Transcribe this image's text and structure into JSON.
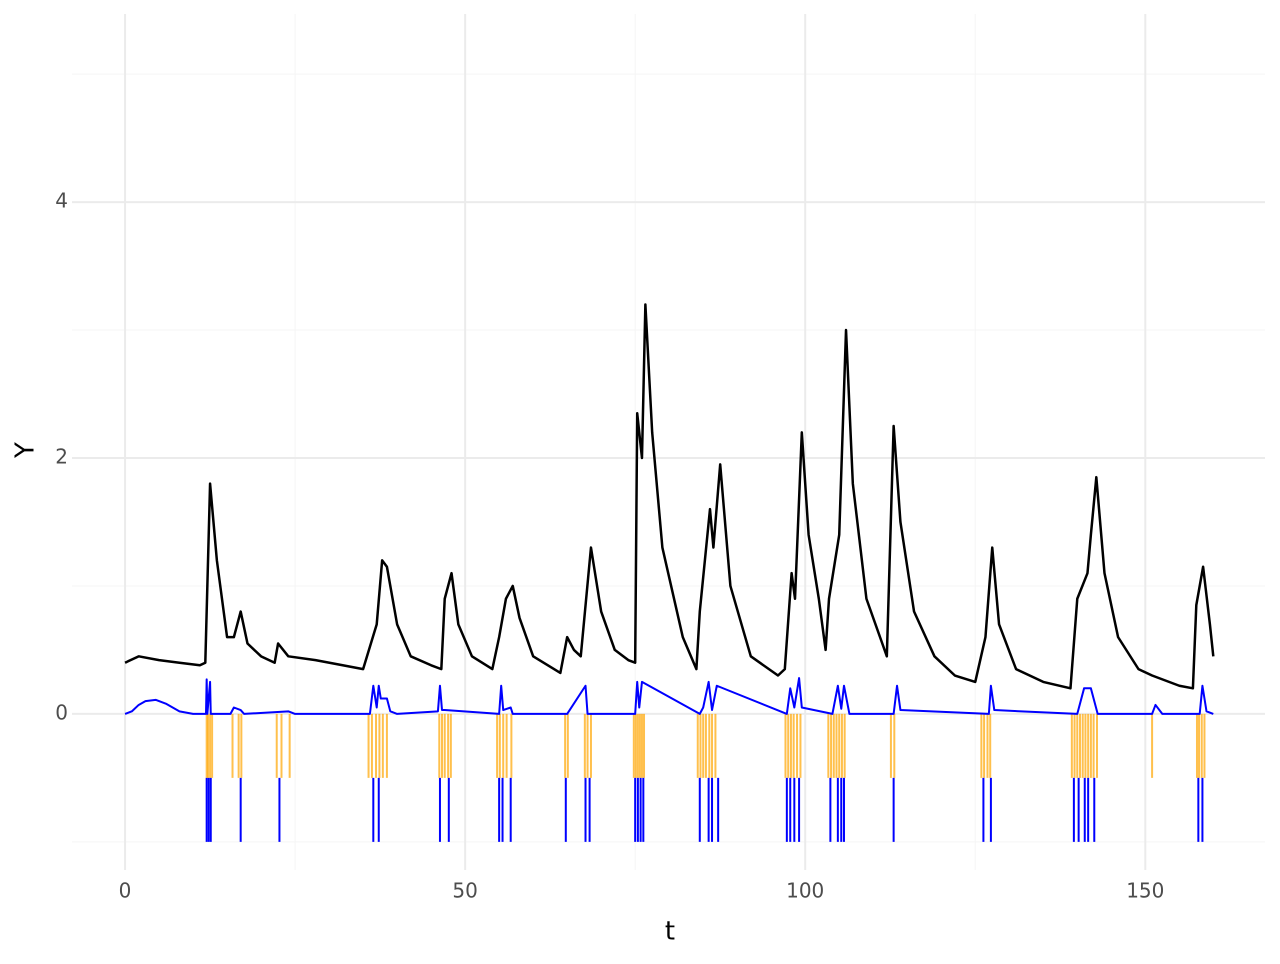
{
  "chart_data": {
    "type": "line",
    "xlabel": "t",
    "ylabel": "Y",
    "xlim": [
      -7.8,
      167.6
    ],
    "ylim": [
      -1.22,
      5.47
    ],
    "xticks": [
      0,
      50,
      100,
      150
    ],
    "yticks": [
      0,
      2,
      4
    ],
    "xminor_ticks": [
      25,
      75,
      125
    ],
    "yminor_ticks": [
      -1,
      1,
      3,
      5
    ],
    "grid": true,
    "series": [
      {
        "kind": "line",
        "color": "#000000",
        "x": [
          0,
          2,
          5,
          8,
          11,
          11.8,
          12.5,
          13.5,
          15,
          16,
          17,
          18,
          20,
          22,
          22.5,
          24,
          28,
          32,
          35,
          37,
          37.8,
          38.5,
          40,
          42,
          45,
          46.5,
          47,
          48,
          49,
          51,
          54,
          55,
          56,
          57,
          58,
          60,
          64,
          65,
          66,
          67,
          68.5,
          70,
          72,
          74,
          75,
          75.3,
          76,
          76.5,
          77.5,
          79,
          82,
          84,
          84.5,
          86,
          86.5,
          87.5,
          89,
          92,
          96,
          97,
          98,
          98.5,
          99.5,
          100.5,
          102,
          103,
          103.5,
          105,
          106,
          107,
          109,
          111,
          112,
          113,
          114,
          116,
          119,
          122,
          125,
          126.5,
          127.5,
          128.5,
          131,
          135,
          139,
          140,
          141.5,
          142,
          142.8,
          144,
          146,
          149,
          151,
          155,
          157,
          157.5,
          158.5,
          159.5,
          160
        ],
        "values": [
          0.4,
          0.45,
          0.42,
          0.4,
          0.38,
          0.4,
          1.8,
          1.2,
          0.6,
          0.6,
          0.8,
          0.55,
          0.45,
          0.4,
          0.55,
          0.45,
          0.42,
          0.38,
          0.35,
          0.7,
          1.2,
          1.15,
          0.7,
          0.45,
          0.38,
          0.35,
          0.9,
          1.1,
          0.7,
          0.45,
          0.35,
          0.6,
          0.9,
          1.0,
          0.75,
          0.45,
          0.32,
          0.6,
          0.5,
          0.45,
          1.3,
          0.8,
          0.5,
          0.42,
          0.4,
          2.35,
          2.0,
          3.2,
          2.2,
          1.3,
          0.6,
          0.35,
          0.8,
          1.6,
          1.3,
          1.95,
          1.0,
          0.45,
          0.3,
          0.35,
          1.1,
          0.9,
          2.2,
          1.4,
          0.9,
          0.5,
          0.9,
          1.4,
          3.0,
          1.8,
          0.9,
          0.6,
          0.45,
          2.25,
          1.5,
          0.8,
          0.45,
          0.3,
          0.25,
          0.6,
          1.3,
          0.7,
          0.35,
          0.25,
          0.2,
          0.9,
          1.1,
          1.4,
          1.85,
          1.1,
          0.6,
          0.35,
          0.3,
          0.22,
          0.2,
          0.85,
          1.15,
          0.7,
          0.45
        ]
      },
      {
        "kind": "line",
        "color": "#0000ff",
        "x": [
          0,
          1,
          2,
          3,
          4.5,
          6,
          8,
          10,
          11.9,
          12,
          12.1,
          12.5,
          12.6,
          15.5,
          16,
          17,
          17.5,
          24,
          25,
          36,
          36.5,
          37,
          37.3,
          37.6,
          38.5,
          39,
          40,
          46,
          46.3,
          46.6,
          47,
          55,
          55.3,
          55.6,
          56.7,
          57,
          65,
          67.7,
          68,
          75,
          75.3,
          75.6,
          76,
          84.5,
          85,
          85.8,
          86.3,
          87,
          97.3,
          97.8,
          98.4,
          99.1,
          99.5,
          104,
          104.8,
          105.3,
          105.7,
          106.5,
          113,
          113.5,
          114,
          127,
          127.3,
          127.8,
          140,
          141,
          142,
          143,
          151,
          151.5,
          152.5,
          158,
          158.4,
          159,
          160
        ],
        "values": [
          0,
          0.02,
          0.07,
          0.1,
          0.11,
          0.08,
          0.02,
          0,
          0,
          0.27,
          0,
          0.25,
          0,
          0,
          0.05,
          0.03,
          0,
          0.02,
          0,
          0,
          0.22,
          0.05,
          0.22,
          0.12,
          0.12,
          0.02,
          0,
          0.02,
          0.22,
          0.03,
          0.03,
          0,
          0.22,
          0.03,
          0.05,
          0,
          0,
          0.22,
          0,
          0,
          0.25,
          0.05,
          0.25,
          0,
          0.05,
          0.25,
          0.03,
          0.22,
          0,
          0.2,
          0.05,
          0.28,
          0.05,
          0,
          0.22,
          0.04,
          0.22,
          0,
          0,
          0.22,
          0.03,
          0,
          0.22,
          0.03,
          0,
          0.2,
          0.2,
          0,
          0,
          0.07,
          0,
          0,
          0.22,
          0.02,
          0
        ],
        "width": 2
      },
      {
        "kind": "segments",
        "color": "#ffa500",
        "y0": 0,
        "y1": -0.5,
        "x": [
          12,
          12.2,
          12.5,
          12.8,
          15.8,
          16.7,
          17.1,
          22.3,
          23,
          24.2,
          35.8,
          36.3,
          36.9,
          37.4,
          37.9,
          38.5,
          46.2,
          46.6,
          47,
          47.5,
          47.9,
          54.7,
          55.1,
          55.6,
          56.1,
          56.8,
          64.7,
          65.1,
          67.6,
          68,
          68.5,
          74.8,
          75.1,
          75.4,
          75.7,
          76,
          76.3,
          84.2,
          84.6,
          85,
          85.4,
          85.9,
          86.3,
          86.8,
          97.1,
          97.5,
          97.9,
          98.3,
          98.8,
          99.3,
          103.4,
          103.8,
          104.2,
          104.6,
          105,
          105.4,
          105.8,
          112.6,
          113.1,
          125.9,
          126.3,
          126.8,
          127.2,
          139.2,
          139.6,
          140,
          140.4,
          140.8,
          141.2,
          141.6,
          142,
          142.4,
          142.9,
          151,
          157.6,
          157.9,
          158.3,
          158.7
        ]
      },
      {
        "kind": "segments",
        "color": "#0000ff",
        "y0": -0.5,
        "y1": -1,
        "x": [
          12,
          12.3,
          12.6,
          17,
          22.7,
          36.5,
          37.3,
          46.3,
          47.6,
          55,
          55.5,
          56.7,
          64.8,
          67.7,
          68.3,
          75,
          75.4,
          75.8,
          76.2,
          84.5,
          85.8,
          86.3,
          87.2,
          97.3,
          97.8,
          98.4,
          99.1,
          103.7,
          104.8,
          105.3,
          105.7,
          113,
          126.2,
          127.3,
          139.5,
          140.2,
          141.1,
          141.6,
          142.5,
          157.8,
          158.4
        ]
      }
    ]
  }
}
